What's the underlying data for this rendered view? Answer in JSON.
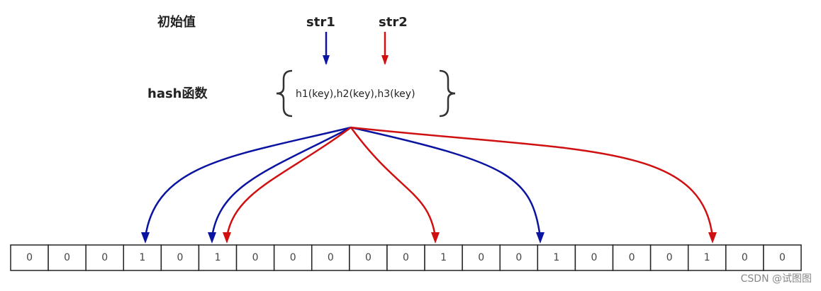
{
  "initial_label": "初始值",
  "inputs": [
    "str1",
    "str2"
  ],
  "hash_label": "hash函数",
  "hash_functions": "h1(key),h2(key),h3(key)",
  "bits": [
    0,
    0,
    0,
    1,
    0,
    1,
    0,
    0,
    0,
    0,
    0,
    1,
    0,
    0,
    1,
    0,
    0,
    0,
    1,
    0,
    0
  ],
  "watermark": "CSDN @试图图"
}
